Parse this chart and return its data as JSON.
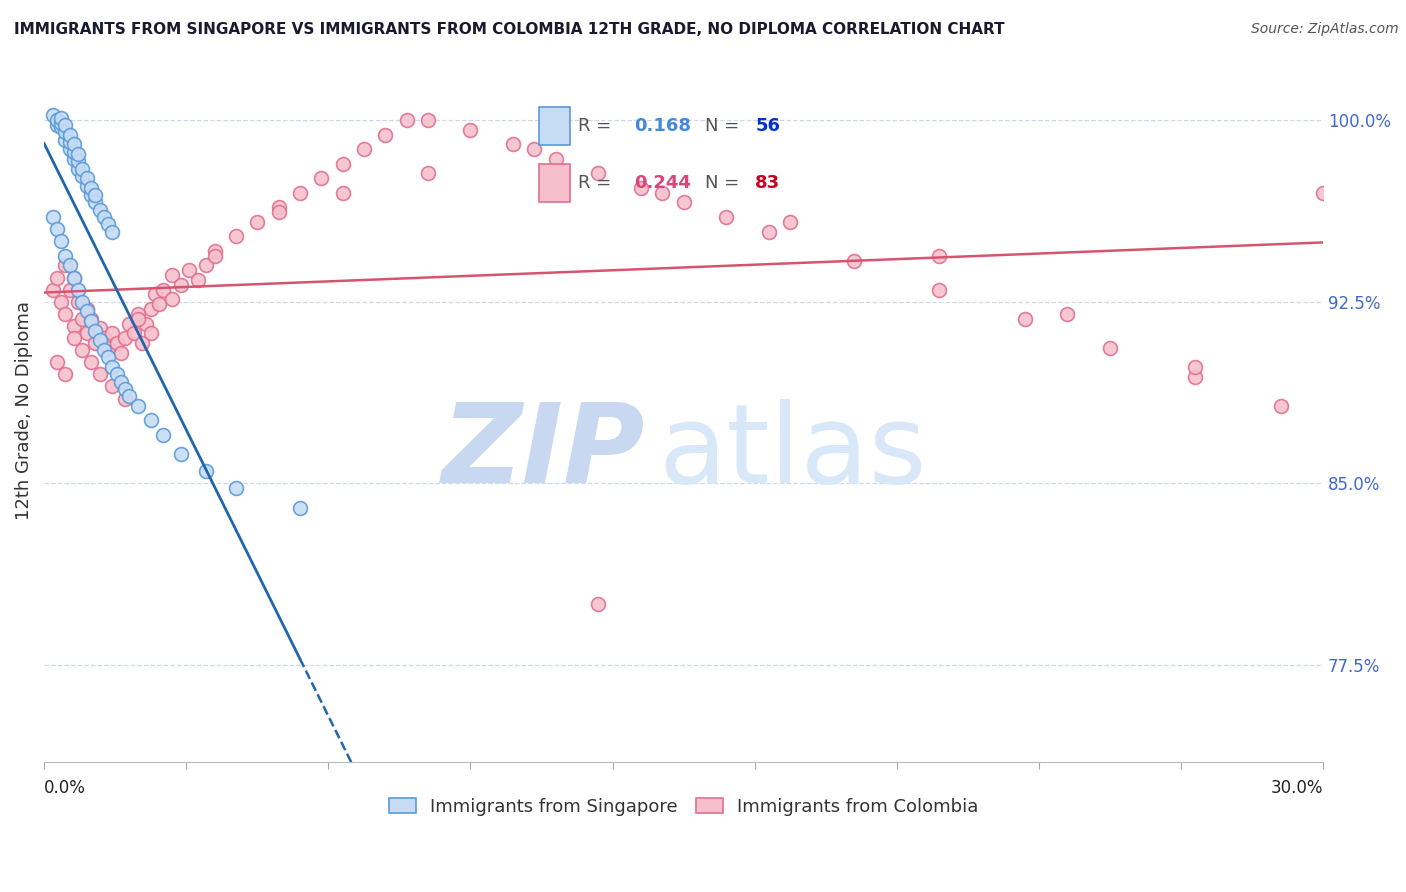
{
  "title": "IMMIGRANTS FROM SINGAPORE VS IMMIGRANTS FROM COLOMBIA 12TH GRADE, NO DIPLOMA CORRELATION CHART",
  "source": "Source: ZipAtlas.com",
  "ylabel": "12th Grade, No Diploma",
  "right_yticks": [
    0.775,
    0.85,
    0.925,
    1.0
  ],
  "right_ytick_labels": [
    "77.5%",
    "85.0%",
    "92.5%",
    "100.0%"
  ],
  "xlim": [
    0.0,
    0.3
  ],
  "ylim": [
    0.735,
    1.025
  ],
  "singapore_R": 0.168,
  "singapore_N": 56,
  "colombia_R": 0.244,
  "colombia_N": 83,
  "singapore_fill_color": "#c6dcf5",
  "singapore_edge_color": "#5b9bd5",
  "colombia_fill_color": "#f5c0cc",
  "colombia_edge_color": "#e07090",
  "singapore_trend_color": "#2166ac",
  "colombia_trend_color": "#d6546e",
  "watermark_zip_color": "#c8d8f0",
  "watermark_atlas_color": "#d8e8f8",
  "background_color": "#ffffff",
  "grid_color": "#d0d8e8",
  "right_axis_color": "#4169cd",
  "title_color": "#1a1a2e",
  "source_color": "#555555",
  "legend_box_color": "#eeeeee",
  "legend_border_color": "#cccccc",
  "sg_R_color": "#4488dd",
  "sg_N_color": "#0033cc",
  "co_R_color": "#dd4477",
  "co_N_color": "#cc0022",
  "bottom_label_sg": "Immigrants from Singapore",
  "bottom_label_co": "Immigrants from Colombia",
  "sg_points_x": [
    0.002,
    0.003,
    0.003,
    0.004,
    0.004,
    0.004,
    0.005,
    0.005,
    0.005,
    0.006,
    0.006,
    0.006,
    0.007,
    0.007,
    0.007,
    0.008,
    0.008,
    0.008,
    0.009,
    0.009,
    0.01,
    0.01,
    0.011,
    0.011,
    0.012,
    0.012,
    0.013,
    0.014,
    0.015,
    0.016,
    0.002,
    0.003,
    0.004,
    0.005,
    0.006,
    0.007,
    0.008,
    0.009,
    0.01,
    0.011,
    0.012,
    0.013,
    0.014,
    0.015,
    0.016,
    0.017,
    0.018,
    0.019,
    0.02,
    0.022,
    0.025,
    0.028,
    0.032,
    0.038,
    0.045,
    0.06
  ],
  "sg_points_y": [
    1.002,
    0.998,
    1.0,
    0.997,
    0.999,
    1.001,
    0.992,
    0.995,
    0.998,
    0.988,
    0.991,
    0.994,
    0.984,
    0.987,
    0.99,
    0.98,
    0.983,
    0.986,
    0.977,
    0.98,
    0.973,
    0.976,
    0.969,
    0.972,
    0.966,
    0.969,
    0.963,
    0.96,
    0.957,
    0.954,
    0.96,
    0.955,
    0.95,
    0.944,
    0.94,
    0.935,
    0.93,
    0.925,
    0.921,
    0.917,
    0.913,
    0.909,
    0.905,
    0.902,
    0.898,
    0.895,
    0.892,
    0.889,
    0.886,
    0.882,
    0.876,
    0.87,
    0.862,
    0.855,
    0.848,
    0.84
  ],
  "co_points_x": [
    0.002,
    0.003,
    0.004,
    0.005,
    0.005,
    0.006,
    0.007,
    0.007,
    0.008,
    0.009,
    0.01,
    0.01,
    0.011,
    0.012,
    0.013,
    0.014,
    0.015,
    0.016,
    0.017,
    0.018,
    0.019,
    0.02,
    0.021,
    0.022,
    0.023,
    0.024,
    0.025,
    0.026,
    0.027,
    0.028,
    0.03,
    0.032,
    0.034,
    0.036,
    0.038,
    0.04,
    0.045,
    0.05,
    0.055,
    0.06,
    0.065,
    0.07,
    0.075,
    0.08,
    0.085,
    0.09,
    0.1,
    0.11,
    0.12,
    0.13,
    0.14,
    0.15,
    0.16,
    0.17,
    0.19,
    0.21,
    0.23,
    0.25,
    0.27,
    0.29,
    0.003,
    0.005,
    0.007,
    0.009,
    0.011,
    0.013,
    0.016,
    0.019,
    0.022,
    0.025,
    0.03,
    0.04,
    0.055,
    0.07,
    0.09,
    0.115,
    0.145,
    0.175,
    0.21,
    0.24,
    0.27,
    0.3,
    0.13
  ],
  "co_points_y": [
    0.93,
    0.935,
    0.925,
    0.94,
    0.92,
    0.93,
    0.935,
    0.915,
    0.925,
    0.918,
    0.922,
    0.912,
    0.918,
    0.908,
    0.914,
    0.91,
    0.906,
    0.912,
    0.908,
    0.904,
    0.91,
    0.916,
    0.912,
    0.92,
    0.908,
    0.916,
    0.922,
    0.928,
    0.924,
    0.93,
    0.936,
    0.932,
    0.938,
    0.934,
    0.94,
    0.946,
    0.952,
    0.958,
    0.964,
    0.97,
    0.976,
    0.982,
    0.988,
    0.994,
    1.0,
    1.0,
    0.996,
    0.99,
    0.984,
    0.978,
    0.972,
    0.966,
    0.96,
    0.954,
    0.942,
    0.93,
    0.918,
    0.906,
    0.894,
    0.882,
    0.9,
    0.895,
    0.91,
    0.905,
    0.9,
    0.895,
    0.89,
    0.885,
    0.918,
    0.912,
    0.926,
    0.944,
    0.962,
    0.97,
    0.978,
    0.988,
    0.97,
    0.958,
    0.944,
    0.92,
    0.898,
    0.97,
    0.8
  ]
}
